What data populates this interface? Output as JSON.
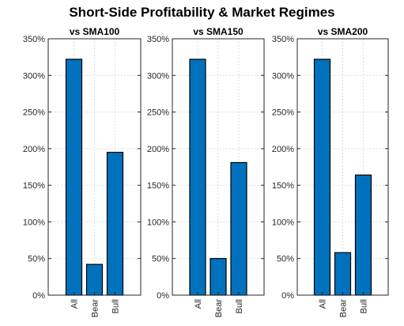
{
  "figure": {
    "title": "Short-Side Profitability & Market Regimes"
  },
  "chart_data": [
    {
      "type": "bar",
      "title": "vs SMA100",
      "categories": [
        "All",
        "Bear",
        "Bull"
      ],
      "values": [
        322,
        42,
        195
      ],
      "ylim": [
        0,
        350
      ],
      "yticks": [
        "0%",
        "50%",
        "100%",
        "150%",
        "200%",
        "250%",
        "300%",
        "350%"
      ],
      "grid": true,
      "bar_color": "#0072BD"
    },
    {
      "type": "bar",
      "title": "vs SMA150",
      "categories": [
        "All",
        "Bear",
        "Bull"
      ],
      "values": [
        322,
        50,
        181
      ],
      "ylim": [
        0,
        350
      ],
      "yticks": [
        "0%",
        "50%",
        "100%",
        "150%",
        "200%",
        "250%",
        "300%",
        "350%"
      ],
      "grid": true,
      "bar_color": "#0072BD"
    },
    {
      "type": "bar",
      "title": "vs SMA200",
      "categories": [
        "All",
        "Bear",
        "Bull"
      ],
      "values": [
        322,
        58,
        164
      ],
      "ylim": [
        0,
        350
      ],
      "yticks": [
        "0%",
        "50%",
        "100%",
        "150%",
        "200%",
        "250%",
        "300%",
        "350%"
      ],
      "grid": true,
      "bar_color": "#0072BD"
    }
  ]
}
